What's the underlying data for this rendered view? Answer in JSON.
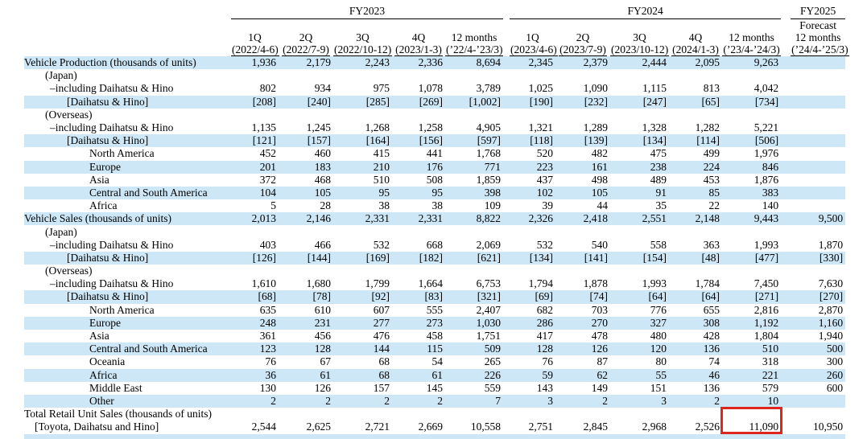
{
  "colors": {
    "highlight": "#cde7f7",
    "accent": "#e0251f",
    "text": "#000000"
  },
  "table": {
    "header": {
      "fy2023": {
        "title": "FY2023",
        "cols": [
          {
            "q": "1Q",
            "d": "(2022/4-6)"
          },
          {
            "q": "2Q",
            "d": "(2022/7-9)"
          },
          {
            "q": "3Q",
            "d": "(2022/10-12)"
          },
          {
            "q": "4Q",
            "d": "(2023/1-3)"
          },
          {
            "q": "12 months",
            "d": "(’22/4-’23/3)"
          }
        ]
      },
      "fy2024": {
        "title": "FY2024",
        "cols": [
          {
            "q": "1Q",
            "d": "(2023/4-6)"
          },
          {
            "q": "2Q",
            "d": "(2023/7-9)"
          },
          {
            "q": "3Q",
            "d": "(2023/10-12)"
          },
          {
            "q": "4Q",
            "d": "(2024/1-3)"
          },
          {
            "q": "12 months",
            "d": "(’23/4-’24/3)"
          }
        ]
      },
      "fy2025": {
        "title": "FY2025",
        "line1": "Forecast",
        "line2": "12 months",
        "date": "(’24/4-’25/3)"
      }
    },
    "indents": [
      30,
      56,
      62,
      83,
      111,
      43
    ],
    "rows": [
      {
        "label": "Vehicle Production (thousands of units)",
        "indent": 0,
        "hl": true,
        "values": [
          "1,936",
          "2,179",
          "2,243",
          "2,336",
          "8,694",
          "2,345",
          "2,379",
          "2,444",
          "2,095",
          "9,263",
          ""
        ]
      },
      {
        "label": "(Japan)",
        "indent": 1,
        "hl": false,
        "values": []
      },
      {
        "label": "–including Daihatsu & Hino",
        "indent": 2,
        "hl": false,
        "values": [
          "802",
          "934",
          "975",
          "1,078",
          "3,789",
          "1,025",
          "1,090",
          "1,115",
          "813",
          "4,042",
          ""
        ]
      },
      {
        "label": "[Daihatsu & Hino]",
        "indent": 3,
        "hl": true,
        "values": [
          "[208]",
          "[240]",
          "[285]",
          "[269]",
          "[1,002]",
          "[190]",
          "[232]",
          "[247]",
          "[65]",
          "[734]",
          ""
        ]
      },
      {
        "label": "(Overseas)",
        "indent": 1,
        "hl": false,
        "values": []
      },
      {
        "label": "–including Daihatsu & Hino",
        "indent": 2,
        "hl": false,
        "values": [
          "1,135",
          "1,245",
          "1,268",
          "1,258",
          "4,905",
          "1,321",
          "1,289",
          "1,328",
          "1,282",
          "5,221",
          ""
        ]
      },
      {
        "label": "[Daihatsu & Hino]",
        "indent": 3,
        "hl": true,
        "values": [
          "[121]",
          "[157]",
          "[164]",
          "[156]",
          "[597]",
          "[118]",
          "[139]",
          "[134]",
          "[114]",
          "[506]",
          ""
        ]
      },
      {
        "label": "North America",
        "indent": 4,
        "hl": false,
        "values": [
          "452",
          "460",
          "415",
          "441",
          "1,768",
          "520",
          "482",
          "475",
          "499",
          "1,976",
          ""
        ]
      },
      {
        "label": "Europe",
        "indent": 4,
        "hl": true,
        "values": [
          "201",
          "183",
          "210",
          "176",
          "771",
          "223",
          "161",
          "238",
          "224",
          "846",
          ""
        ]
      },
      {
        "label": "Asia",
        "indent": 4,
        "hl": false,
        "values": [
          "372",
          "468",
          "510",
          "508",
          "1,859",
          "437",
          "498",
          "489",
          "453",
          "1,876",
          ""
        ]
      },
      {
        "label": "Central and South America",
        "indent": 4,
        "hl": true,
        "values": [
          "104",
          "105",
          "95",
          "95",
          "398",
          "102",
          "105",
          "91",
          "85",
          "383",
          ""
        ]
      },
      {
        "label": "Africa",
        "indent": 4,
        "hl": false,
        "values": [
          "5",
          "28",
          "38",
          "38",
          "109",
          "39",
          "44",
          "35",
          "22",
          "140",
          ""
        ]
      },
      {
        "label": "Vehicle Sales (thousands of units)",
        "indent": 0,
        "hl": true,
        "values": [
          "2,013",
          "2,146",
          "2,331",
          "2,331",
          "8,822",
          "2,326",
          "2,418",
          "2,551",
          "2,148",
          "9,443",
          "9,500"
        ]
      },
      {
        "label": "(Japan)",
        "indent": 1,
        "hl": false,
        "values": []
      },
      {
        "label": "–including Daihatsu & Hino",
        "indent": 2,
        "hl": false,
        "values": [
          "403",
          "466",
          "532",
          "668",
          "2,069",
          "532",
          "540",
          "558",
          "363",
          "1,993",
          "1,870"
        ]
      },
      {
        "label": "[Daihatsu & Hino]",
        "indent": 3,
        "hl": true,
        "values": [
          "[126]",
          "[144]",
          "[169]",
          "[182]",
          "[621]",
          "[134]",
          "[141]",
          "[154]",
          "[48]",
          "[477]",
          "[330]"
        ]
      },
      {
        "label": "(Overseas)",
        "indent": 1,
        "hl": false,
        "values": []
      },
      {
        "label": "–including Daihatsu & Hino",
        "indent": 2,
        "hl": false,
        "values": [
          "1,610",
          "1,680",
          "1,799",
          "1,664",
          "6,753",
          "1,794",
          "1,878",
          "1,993",
          "1,784",
          "7,450",
          "7,630"
        ]
      },
      {
        "label": "[Daihatsu & Hino]",
        "indent": 3,
        "hl": true,
        "values": [
          "[68]",
          "[78]",
          "[92]",
          "[83]",
          "[321]",
          "[69]",
          "[74]",
          "[64]",
          "[64]",
          "[271]",
          "[270]"
        ]
      },
      {
        "label": "North America",
        "indent": 4,
        "hl": false,
        "values": [
          "635",
          "610",
          "607",
          "555",
          "2,407",
          "682",
          "703",
          "776",
          "655",
          "2,816",
          "2,870"
        ]
      },
      {
        "label": "Europe",
        "indent": 4,
        "hl": true,
        "values": [
          "248",
          "231",
          "277",
          "273",
          "1,030",
          "286",
          "270",
          "327",
          "308",
          "1,192",
          "1,160"
        ]
      },
      {
        "label": "Asia",
        "indent": 4,
        "hl": false,
        "values": [
          "361",
          "456",
          "476",
          "458",
          "1,751",
          "417",
          "478",
          "480",
          "428",
          "1,804",
          "1,940"
        ]
      },
      {
        "label": "Central and South America",
        "indent": 4,
        "hl": true,
        "values": [
          "123",
          "128",
          "144",
          "115",
          "509",
          "128",
          "126",
          "120",
          "136",
          "510",
          "500"
        ]
      },
      {
        "label": "Oceania",
        "indent": 4,
        "hl": false,
        "values": [
          "76",
          "67",
          "68",
          "54",
          "265",
          "76",
          "87",
          "80",
          "74",
          "318",
          "300"
        ]
      },
      {
        "label": "Africa",
        "indent": 4,
        "hl": true,
        "values": [
          "36",
          "61",
          "68",
          "61",
          "226",
          "59",
          "62",
          "55",
          "46",
          "221",
          "260"
        ]
      },
      {
        "label": "Middle East",
        "indent": 4,
        "hl": false,
        "values": [
          "130",
          "126",
          "157",
          "145",
          "559",
          "143",
          "149",
          "151",
          "136",
          "579",
          "600"
        ]
      },
      {
        "label": "Other",
        "indent": 4,
        "hl": true,
        "values": [
          "2",
          "2",
          "2",
          "2",
          "7",
          "3",
          "2",
          "3",
          "2",
          "10",
          ""
        ]
      },
      {
        "label": "Total Retail Unit Sales (thousands of units)",
        "indent": 0,
        "hl": false,
        "values": []
      },
      {
        "label": "[Toyota, Daihatsu and Hino]",
        "indent": 5,
        "hl": false,
        "box_index": 9,
        "values": [
          "2,544",
          "2,625",
          "2,721",
          "2,669",
          "10,558",
          "2,751",
          "2,845",
          "2,968",
          "2,526",
          "11,090",
          "10,950"
        ]
      }
    ]
  }
}
